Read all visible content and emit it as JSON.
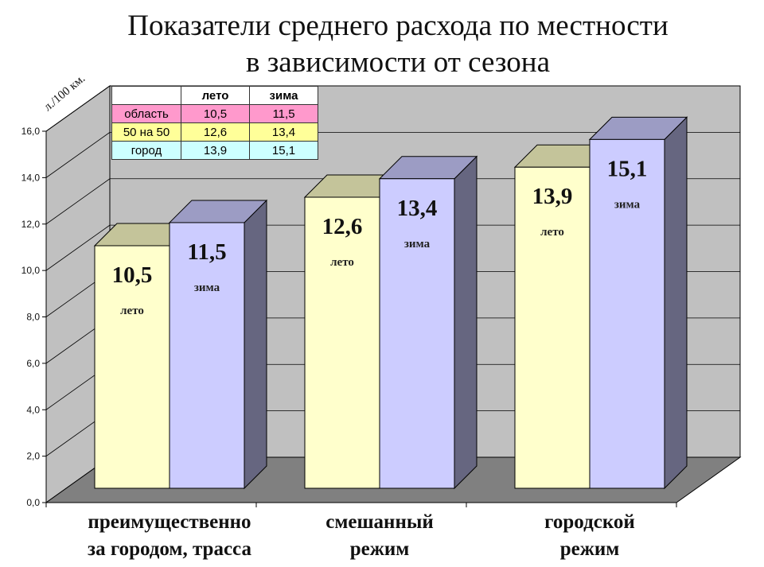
{
  "chart_data": {
    "type": "bar",
    "title": [
      "Показатели среднего расхода по местности",
      "в зависимости от сезона"
    ],
    "ylabel": "л./100 км.",
    "ylim": [
      0,
      16
    ],
    "yticks": [
      "0,0",
      "2,0",
      "4,0",
      "6,0",
      "8,0",
      "10,0",
      "12,0",
      "14,0",
      "16,0"
    ],
    "grid": true,
    "style": "3d",
    "categories": [
      [
        "преимущественно",
        "за городом, трасса"
      ],
      [
        "смешанный",
        "режим"
      ],
      [
        "городской",
        "режим"
      ]
    ],
    "series": [
      {
        "name": "лето",
        "values": [
          10.5,
          12.6,
          13.9
        ],
        "labels": [
          "10,5",
          "12,6",
          "13,9"
        ],
        "color": "#FFFFCC",
        "top_color": "#C4C49A"
      },
      {
        "name": "зима",
        "values": [
          11.5,
          13.4,
          15.1
        ],
        "labels": [
          "11,5",
          "13,4",
          "15,1"
        ],
        "color": "#CCCCFF",
        "top_color": "#9C9CC4",
        "side_color": "#666680"
      }
    ],
    "colors": {
      "wall": "#C0C0C0",
      "floor": "#808080"
    }
  },
  "table": {
    "header": [
      "",
      "лето",
      "зима"
    ],
    "rows": [
      {
        "label": "область",
        "values": [
          "10,5",
          "11,5"
        ],
        "color": "#FF99CC"
      },
      {
        "label": "50 на 50",
        "values": [
          "12,6",
          "13,4"
        ],
        "color": "#FFFF99"
      },
      {
        "label": "город",
        "values": [
          "13,9",
          "15,1"
        ],
        "color": "#CCFFFF"
      }
    ]
  }
}
